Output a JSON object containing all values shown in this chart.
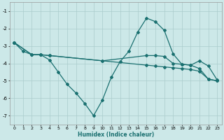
{
  "xlabel": "Humidex (Indice chaleur)",
  "bg_color": "#cce8e8",
  "grid_color": "#aacccc",
  "line_color": "#1a7070",
  "xlim": [
    -0.5,
    23.5
  ],
  "ylim": [
    -7.5,
    -0.5
  ],
  "yticks": [
    -7,
    -6,
    -5,
    -4,
    -3,
    -2,
    -1
  ],
  "xticks": [
    0,
    1,
    2,
    3,
    4,
    5,
    6,
    7,
    8,
    9,
    10,
    11,
    12,
    13,
    14,
    15,
    16,
    17,
    18,
    19,
    20,
    21,
    22,
    23
  ],
  "line1_x": [
    0,
    1,
    2,
    3,
    4,
    5,
    6,
    7,
    8,
    9,
    10,
    11,
    12,
    13,
    14,
    15,
    16,
    17,
    18,
    19,
    20,
    21,
    22,
    23
  ],
  "line1_y": [
    -2.8,
    -3.3,
    -3.5,
    -3.5,
    -3.8,
    -4.5,
    -5.2,
    -5.7,
    -6.3,
    -7.0,
    -6.1,
    -4.8,
    -3.9,
    -3.3,
    -2.2,
    -1.4,
    -1.6,
    -2.1,
    -3.45,
    -4.05,
    -4.1,
    -3.85,
    -4.15,
    -4.95
  ],
  "line2_x": [
    0,
    2,
    3,
    4,
    10,
    15,
    16,
    17,
    18,
    19,
    20,
    21,
    22,
    23
  ],
  "line2_y": [
    -2.8,
    -3.5,
    -3.5,
    -3.55,
    -3.85,
    -3.55,
    -3.55,
    -3.6,
    -4.0,
    -4.05,
    -4.1,
    -4.3,
    -4.9,
    -5.0
  ],
  "line3_x": [
    0,
    2,
    3,
    4,
    10,
    15,
    16,
    17,
    18,
    19,
    20,
    21,
    22,
    23
  ],
  "line3_y": [
    -2.8,
    -3.5,
    -3.5,
    -3.55,
    -3.85,
    -4.1,
    -4.15,
    -4.2,
    -4.25,
    -4.3,
    -4.35,
    -4.45,
    -4.9,
    -5.0
  ]
}
